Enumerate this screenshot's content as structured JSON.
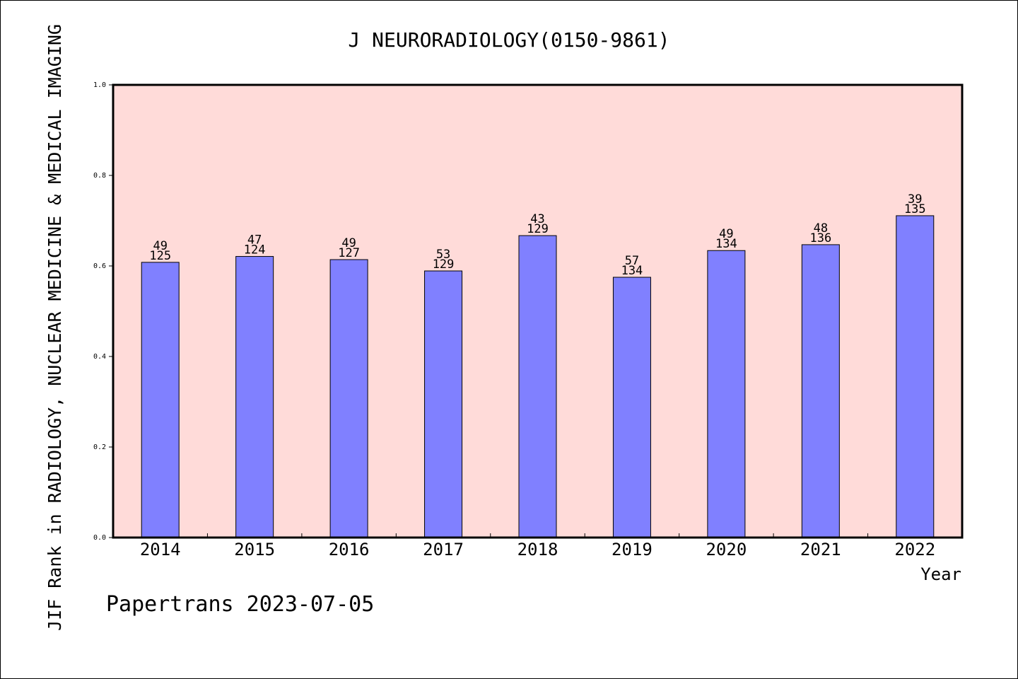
{
  "chart_data": {
    "type": "bar",
    "title": "J NEURORADIOLOGY(0150-9861)",
    "ylabel": "JIF Rank in RADIOLOGY, NUCLEAR MEDICINE & MEDICAL IMAGING",
    "xlabel": "Year",
    "ylim": [
      0,
      1.0
    ],
    "yticks": [
      "0.0",
      "0.2",
      "0.4",
      "0.6",
      "0.8",
      "1.0"
    ],
    "categories": [
      "2014",
      "2015",
      "2016",
      "2017",
      "2018",
      "2019",
      "2020",
      "2021",
      "2022"
    ],
    "values": [
      0.608,
      0.621,
      0.614,
      0.589,
      0.667,
      0.575,
      0.634,
      0.647,
      0.711
    ],
    "rank": [
      "49",
      "47",
      "49",
      "53",
      "43",
      "57",
      "49",
      "48",
      "39"
    ],
    "total": [
      "125",
      "124",
      "127",
      "129",
      "129",
      "134",
      "134",
      "136",
      "135"
    ],
    "grid": false,
    "colors": {
      "plot_bg": "#ffdbd9",
      "bar": "#8080ff"
    }
  },
  "footer": {
    "credit": "Papertrans 2023-07-05"
  }
}
